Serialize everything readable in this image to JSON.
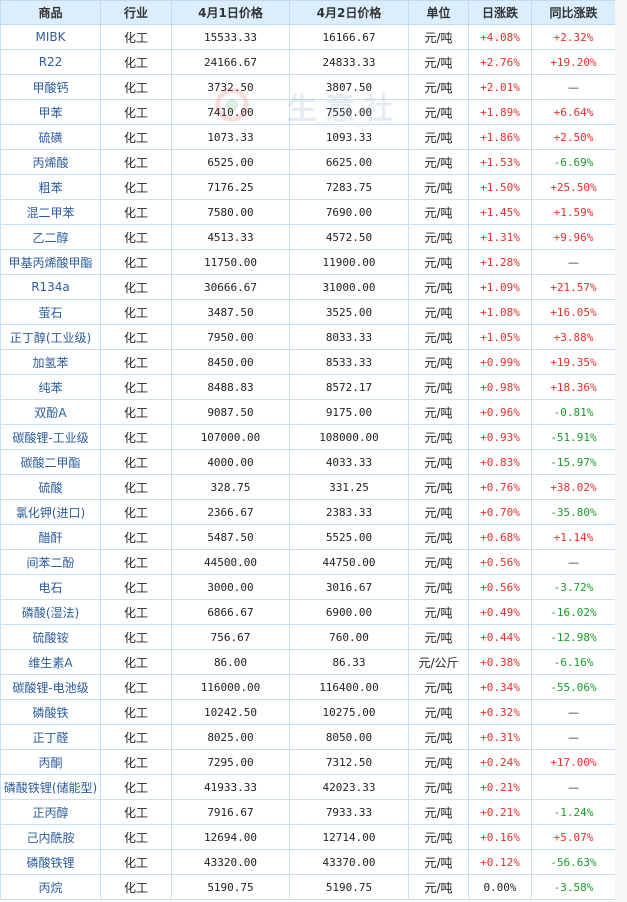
{
  "headers": [
    "商品",
    "行业",
    "4月1日价格",
    "4月2日价格",
    "单位",
    "日涨跌",
    "同比涨跌"
  ],
  "watermark": {
    "text": "生意社",
    "url": "www.100ppi.com"
  },
  "rows": [
    {
      "name": "MIBK",
      "industry": "化工",
      "p1": "15533.33",
      "p2": "16166.67",
      "unit": "元/吨",
      "day": "+4.08%",
      "yoy": "+2.32%"
    },
    {
      "name": "R22",
      "industry": "化工",
      "p1": "24166.67",
      "p2": "24833.33",
      "unit": "元/吨",
      "day": "+2.76%",
      "yoy": "+19.20%"
    },
    {
      "name": "甲酸钙",
      "industry": "化工",
      "p1": "3732.50",
      "p2": "3807.50",
      "unit": "元/吨",
      "day": "+2.01%",
      "yoy": "—"
    },
    {
      "name": "甲苯",
      "industry": "化工",
      "p1": "7410.00",
      "p2": "7550.00",
      "unit": "元/吨",
      "day": "+1.89%",
      "yoy": "+6.64%"
    },
    {
      "name": "硫磺",
      "industry": "化工",
      "p1": "1073.33",
      "p2": "1093.33",
      "unit": "元/吨",
      "day": "+1.86%",
      "yoy": "+2.50%"
    },
    {
      "name": "丙烯酸",
      "industry": "化工",
      "p1": "6525.00",
      "p2": "6625.00",
      "unit": "元/吨",
      "day": "+1.53%",
      "yoy": "-6.69%"
    },
    {
      "name": "粗苯",
      "industry": "化工",
      "p1": "7176.25",
      "p2": "7283.75",
      "unit": "元/吨",
      "day": "+1.50%",
      "yoy": "+25.50%"
    },
    {
      "name": "混二甲苯",
      "industry": "化工",
      "p1": "7580.00",
      "p2": "7690.00",
      "unit": "元/吨",
      "day": "+1.45%",
      "yoy": "+1.59%"
    },
    {
      "name": "乙二醇",
      "industry": "化工",
      "p1": "4513.33",
      "p2": "4572.50",
      "unit": "元/吨",
      "day": "+1.31%",
      "yoy": "+9.96%"
    },
    {
      "name": "甲基丙烯酸甲酯",
      "industry": "化工",
      "p1": "11750.00",
      "p2": "11900.00",
      "unit": "元/吨",
      "day": "+1.28%",
      "yoy": "—"
    },
    {
      "name": "R134a",
      "industry": "化工",
      "p1": "30666.67",
      "p2": "31000.00",
      "unit": "元/吨",
      "day": "+1.09%",
      "yoy": "+21.57%"
    },
    {
      "name": "萤石",
      "industry": "化工",
      "p1": "3487.50",
      "p2": "3525.00",
      "unit": "元/吨",
      "day": "+1.08%",
      "yoy": "+16.05%"
    },
    {
      "name": "正丁醇(工业级)",
      "industry": "化工",
      "p1": "7950.00",
      "p2": "8033.33",
      "unit": "元/吨",
      "day": "+1.05%",
      "yoy": "+3.88%"
    },
    {
      "name": "加氢苯",
      "industry": "化工",
      "p1": "8450.00",
      "p2": "8533.33",
      "unit": "元/吨",
      "day": "+0.99%",
      "yoy": "+19.35%"
    },
    {
      "name": "纯苯",
      "industry": "化工",
      "p1": "8488.83",
      "p2": "8572.17",
      "unit": "元/吨",
      "day": "+0.98%",
      "yoy": "+18.36%"
    },
    {
      "name": "双酚A",
      "industry": "化工",
      "p1": "9087.50",
      "p2": "9175.00",
      "unit": "元/吨",
      "day": "+0.96%",
      "yoy": "-0.81%"
    },
    {
      "name": "碳酸锂-工业级",
      "industry": "化工",
      "p1": "107000.00",
      "p2": "108000.00",
      "unit": "元/吨",
      "day": "+0.93%",
      "yoy": "-51.91%"
    },
    {
      "name": "碳酸二甲酯",
      "industry": "化工",
      "p1": "4000.00",
      "p2": "4033.33",
      "unit": "元/吨",
      "day": "+0.83%",
      "yoy": "-15.97%"
    },
    {
      "name": "硫酸",
      "industry": "化工",
      "p1": "328.75",
      "p2": "331.25",
      "unit": "元/吨",
      "day": "+0.76%",
      "yoy": "+38.02%"
    },
    {
      "name": "氯化钾(进口)",
      "industry": "化工",
      "p1": "2366.67",
      "p2": "2383.33",
      "unit": "元/吨",
      "day": "+0.70%",
      "yoy": "-35.80%"
    },
    {
      "name": "醋酐",
      "industry": "化工",
      "p1": "5487.50",
      "p2": "5525.00",
      "unit": "元/吨",
      "day": "+0.68%",
      "yoy": "+1.14%"
    },
    {
      "name": "间苯二酚",
      "industry": "化工",
      "p1": "44500.00",
      "p2": "44750.00",
      "unit": "元/吨",
      "day": "+0.56%",
      "yoy": "—"
    },
    {
      "name": "电石",
      "industry": "化工",
      "p1": "3000.00",
      "p2": "3016.67",
      "unit": "元/吨",
      "day": "+0.56%",
      "yoy": "-3.72%"
    },
    {
      "name": "磷酸(湿法)",
      "industry": "化工",
      "p1": "6866.67",
      "p2": "6900.00",
      "unit": "元/吨",
      "day": "+0.49%",
      "yoy": "-16.02%"
    },
    {
      "name": "硫酸铵",
      "industry": "化工",
      "p1": "756.67",
      "p2": "760.00",
      "unit": "元/吨",
      "day": "+0.44%",
      "yoy": "-12.98%"
    },
    {
      "name": "维生素A",
      "industry": "化工",
      "p1": "86.00",
      "p2": "86.33",
      "unit": "元/公斤",
      "day": "+0.38%",
      "yoy": "-6.16%"
    },
    {
      "name": "碳酸锂-电池级",
      "industry": "化工",
      "p1": "116000.00",
      "p2": "116400.00",
      "unit": "元/吨",
      "day": "+0.34%",
      "yoy": "-55.06%"
    },
    {
      "name": "磷酸铁",
      "industry": "化工",
      "p1": "10242.50",
      "p2": "10275.00",
      "unit": "元/吨",
      "day": "+0.32%",
      "yoy": "—"
    },
    {
      "name": "正丁醛",
      "industry": "化工",
      "p1": "8025.00",
      "p2": "8050.00",
      "unit": "元/吨",
      "day": "+0.31%",
      "yoy": "—"
    },
    {
      "name": "丙酮",
      "industry": "化工",
      "p1": "7295.00",
      "p2": "7312.50",
      "unit": "元/吨",
      "day": "+0.24%",
      "yoy": "+17.00%"
    },
    {
      "name": "磷酸铁锂(储能型)",
      "industry": "化工",
      "p1": "41933.33",
      "p2": "42023.33",
      "unit": "元/吨",
      "day": "+0.21%",
      "yoy": "—"
    },
    {
      "name": "正丙醇",
      "industry": "化工",
      "p1": "7916.67",
      "p2": "7933.33",
      "unit": "元/吨",
      "day": "+0.21%",
      "yoy": "-1.24%"
    },
    {
      "name": "己内酰胺",
      "industry": "化工",
      "p1": "12694.00",
      "p2": "12714.00",
      "unit": "元/吨",
      "day": "+0.16%",
      "yoy": "+5.07%"
    },
    {
      "name": "磷酸铁锂",
      "industry": "化工",
      "p1": "43320.00",
      "p2": "43370.00",
      "unit": "元/吨",
      "day": "+0.12%",
      "yoy": "-56.63%"
    },
    {
      "name": "丙烷",
      "industry": "化工",
      "p1": "5190.75",
      "p2": "5190.75",
      "unit": "元/吨",
      "day": "0.00%",
      "yoy": "-3.58%"
    }
  ]
}
